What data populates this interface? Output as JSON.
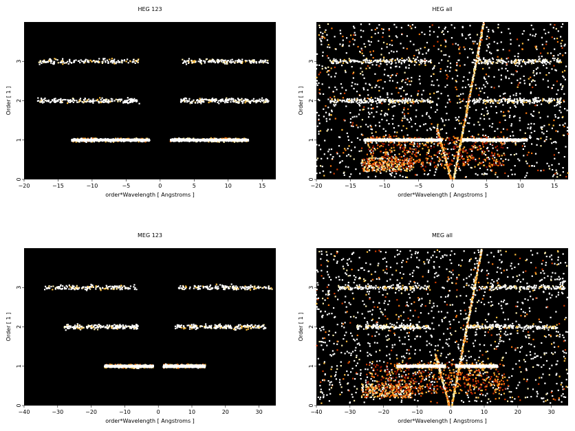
{
  "figure": {
    "background": "#ffffff",
    "plot_background": "#000000"
  },
  "colormap": [
    "#3a0000",
    "#8b0a00",
    "#d23a00",
    "#ff7a10",
    "#ffc040",
    "#fff0b0",
    "#ffffff"
  ],
  "chart_data": [
    {
      "type": "heatmap",
      "title": "HEG 123",
      "xlabel": "order*Wavelength [ Angstroms ]",
      "ylabel": "Order [ 1 ]",
      "xlim": [
        -20,
        17
      ],
      "ylim": [
        0,
        4
      ],
      "xticks": [
        -20,
        -15,
        -10,
        -5,
        0,
        5,
        10,
        15
      ],
      "yticks": [
        0,
        1,
        2,
        3
      ],
      "bands": [
        {
          "order": 1,
          "ranges": [
            [
              -13,
              -1.5
            ],
            [
              1.5,
              13
            ]
          ],
          "intensity": "high"
        },
        {
          "order": 2,
          "ranges": [
            [
              -18,
              -3
            ],
            [
              3,
              16
            ]
          ],
          "intensity": "medium"
        },
        {
          "order": 3,
          "ranges": [
            [
              -18,
              -3
            ],
            [
              3,
              16
            ]
          ],
          "intensity": "low"
        }
      ],
      "background_noise": false,
      "dispersion_streaks": false
    },
    {
      "type": "heatmap",
      "title": "HEG all",
      "xlabel": "order*Wavelength [ Angstroms ]",
      "ylabel": "Order [ 1 ]",
      "xlim": [
        -20,
        17
      ],
      "ylim": [
        0,
        4
      ],
      "xticks": [
        -20,
        -15,
        -10,
        -5,
        0,
        5,
        10,
        15
      ],
      "yticks": [
        0,
        1,
        2,
        3
      ],
      "bands": [
        {
          "order": 1,
          "ranges": [
            [
              -13,
              -1.5
            ],
            [
              1.5,
              11
            ]
          ],
          "intensity": "high"
        },
        {
          "order": 2,
          "ranges": [
            [
              -18,
              -3
            ],
            [
              3,
              16
            ]
          ],
          "intensity": "medium"
        },
        {
          "order": 3,
          "ranges": [
            [
              -18,
              -3
            ],
            [
              3,
              16
            ]
          ],
          "intensity": "low"
        }
      ],
      "background_noise": true,
      "dispersion_streaks": true
    },
    {
      "type": "heatmap",
      "title": "MEG 123",
      "xlabel": "order*Wavelength [ Angstroms ]",
      "ylabel": "Order [ 1 ]",
      "xlim": [
        -40,
        35
      ],
      "ylim": [
        0,
        4
      ],
      "xticks": [
        -40,
        -30,
        -20,
        -10,
        0,
        10,
        20,
        30
      ],
      "yticks": [
        0,
        1,
        2,
        3
      ],
      "bands": [
        {
          "order": 1,
          "ranges": [
            [
              -16,
              -1.5
            ],
            [
              1.5,
              14
            ]
          ],
          "intensity": "high"
        },
        {
          "order": 2,
          "ranges": [
            [
              -28,
              -6
            ],
            [
              5,
              32
            ]
          ],
          "intensity": "medium"
        },
        {
          "order": 3,
          "ranges": [
            [
              -34,
              -6
            ],
            [
              6,
              34
            ]
          ],
          "intensity": "low"
        }
      ],
      "background_noise": false,
      "dispersion_streaks": false
    },
    {
      "type": "heatmap",
      "title": "MEG all",
      "xlabel": "order*Wavelength [ Angstroms ]",
      "ylabel": "Order [ 1 ]",
      "xlim": [
        -40,
        35
      ],
      "ylim": [
        0,
        4
      ],
      "xticks": [
        -40,
        -30,
        -20,
        -10,
        0,
        10,
        20,
        30
      ],
      "yticks": [
        0,
        1,
        2,
        3
      ],
      "bands": [
        {
          "order": 1,
          "ranges": [
            [
              -16,
              -1.5
            ],
            [
              1.5,
              14
            ]
          ],
          "intensity": "high"
        },
        {
          "order": 2,
          "ranges": [
            [
              -28,
              -6
            ],
            [
              5,
              32
            ]
          ],
          "intensity": "medium"
        },
        {
          "order": 3,
          "ranges": [
            [
              -34,
              -6
            ],
            [
              6,
              34
            ]
          ],
          "intensity": "low"
        }
      ],
      "background_noise": true,
      "dispersion_streaks": true
    }
  ]
}
